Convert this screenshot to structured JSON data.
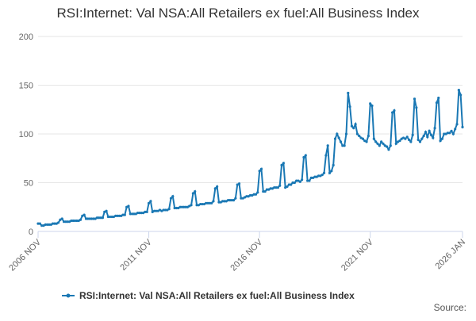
{
  "chart_data": {
    "type": "line",
    "title": "RSI:Internet: Val NSA:All Retailers ex fuel:All Business Index",
    "categories": [
      "2006 NOV",
      null,
      null,
      null,
      null,
      null,
      null,
      null,
      null,
      null,
      null,
      null,
      null,
      null,
      null,
      null,
      null,
      null,
      null,
      null,
      null,
      null,
      null,
      null,
      null,
      null,
      null,
      null,
      null,
      null,
      null,
      null,
      null,
      null,
      null,
      null,
      null,
      null,
      null,
      null,
      null,
      null,
      null,
      null,
      null,
      null,
      null,
      null,
      null,
      null,
      null,
      null,
      null,
      null,
      null,
      null,
      null,
      null,
      null,
      null,
      "2011 NOV",
      null,
      null,
      null,
      null,
      null,
      null,
      null,
      null,
      null,
      null,
      null,
      null,
      null,
      null,
      null,
      null,
      null,
      null,
      null,
      null,
      null,
      null,
      null,
      null,
      null,
      null,
      null,
      null,
      null,
      null,
      null,
      null,
      null,
      null,
      null,
      null,
      null,
      null,
      null,
      null,
      null,
      null,
      null,
      null,
      null,
      null,
      null,
      null,
      null,
      null,
      null,
      null,
      null,
      null,
      null,
      null,
      null,
      null,
      null,
      "2016 NOV",
      null,
      null,
      null,
      null,
      null,
      null,
      null,
      null,
      null,
      null,
      null,
      null,
      null,
      null,
      null,
      null,
      null,
      null,
      null,
      null,
      null,
      null,
      null,
      null,
      null,
      null,
      null,
      null,
      null,
      null,
      null,
      null,
      null,
      null,
      null,
      null,
      null,
      null,
      null,
      null,
      null,
      null,
      null,
      null,
      null,
      null,
      null,
      null,
      null,
      null,
      null,
      null,
      null,
      null,
      null,
      null,
      null,
      null,
      null,
      "2021 NOV",
      null,
      null,
      null,
      null,
      null,
      null,
      null,
      null,
      null,
      null,
      null,
      null,
      null,
      null,
      null,
      null,
      null,
      null,
      null,
      null,
      null,
      null,
      null,
      null,
      null,
      null,
      null,
      null,
      null,
      null,
      null,
      null,
      null,
      null,
      null,
      null,
      null,
      null,
      null,
      null,
      null,
      null,
      null,
      null,
      null,
      null,
      null,
      null,
      null,
      "2026 JAN"
    ],
    "series": [
      {
        "name": "RSI:Internet: Val NSA:All Retailers ex fuel:All Business Index",
        "color": "#1a78b4",
        "values": [
          8,
          8,
          6,
          6,
          7,
          7,
          7,
          7,
          8,
          8,
          8,
          9,
          12,
          13,
          10,
          10,
          10,
          10,
          11,
          11,
          11,
          11,
          11,
          12,
          16,
          17,
          13,
          13,
          13,
          13,
          13,
          13,
          14,
          14,
          14,
          14,
          20,
          21,
          15,
          15,
          15,
          15,
          16,
          16,
          16,
          16,
          17,
          17,
          25,
          26,
          18,
          18,
          18,
          18,
          19,
          19,
          19,
          19,
          20,
          20,
          29,
          31,
          20,
          21,
          21,
          21,
          22,
          21,
          22,
          22,
          22,
          23,
          34,
          36,
          24,
          24,
          24,
          25,
          25,
          25,
          25,
          25,
          26,
          27,
          39,
          41,
          27,
          27,
          28,
          28,
          28,
          29,
          29,
          29,
          29,
          31,
          44,
          46,
          30,
          30,
          31,
          31,
          31,
          32,
          32,
          32,
          32,
          34,
          48,
          49,
          34,
          34,
          35,
          36,
          36,
          37,
          37,
          38,
          38,
          40,
          62,
          64,
          41,
          41,
          43,
          43,
          44,
          44,
          45,
          45,
          45,
          47,
          68,
          70,
          45,
          46,
          48,
          48,
          50,
          50,
          52,
          52,
          51,
          53,
          76,
          78,
          52,
          52,
          55,
          55,
          56,
          56,
          57,
          57,
          58,
          60,
          78,
          88,
          60,
          62,
          68,
          95,
          100,
          96,
          92,
          88,
          88,
          100,
          142,
          128,
          108,
          106,
          110,
          100,
          98,
          96,
          95,
          93,
          92,
          98,
          131,
          129,
          95,
          92,
          90,
          88,
          92,
          90,
          88,
          87,
          84,
          88,
          122,
          124,
          90,
          92,
          93,
          95,
          96,
          95,
          97,
          94,
          92,
          99,
          136,
          127,
          94,
          92,
          95,
          98,
          102,
          97,
          103,
          99,
          96,
          106,
          132,
          137,
          93,
          95,
          100,
          100,
          101,
          101,
          103,
          100,
          105,
          110,
          145,
          140,
          107
        ]
      }
    ],
    "ylim": [
      0,
      200
    ],
    "yticks": [
      0,
      50,
      100,
      150,
      200
    ],
    "grid": true,
    "source": "Source:"
  }
}
